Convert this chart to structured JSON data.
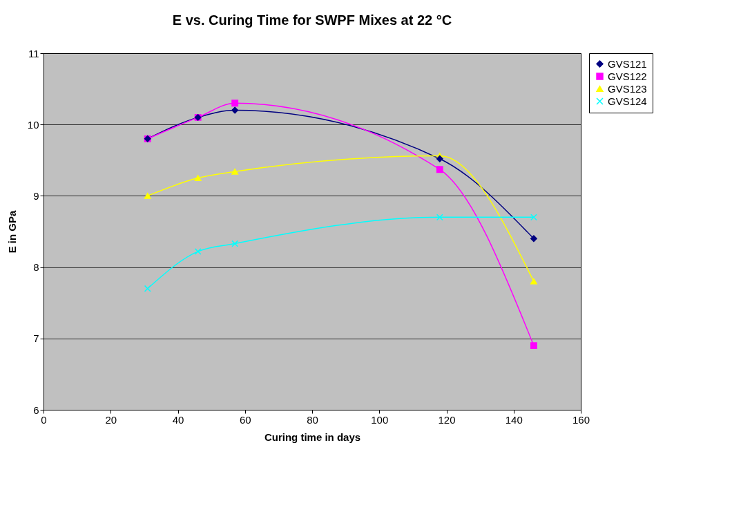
{
  "chart_data": {
    "type": "line",
    "title": "E vs. Curing Time for SWPF Mixes at 22 °C",
    "xlabel": "Curing time in days",
    "ylabel": "E in GPa",
    "x": [
      31,
      46,
      57,
      118,
      146
    ],
    "series": [
      {
        "name": "GVS121",
        "color": "#000080",
        "marker": "diamond",
        "values": [
          9.8,
          10.1,
          10.2,
          9.52,
          8.4
        ]
      },
      {
        "name": "GVS122",
        "color": "#ff00ff",
        "marker": "square",
        "values": [
          9.8,
          10.1,
          10.3,
          9.37,
          6.9
        ]
      },
      {
        "name": "GVS123",
        "color": "#ffff00",
        "marker": "triangle",
        "values": [
          9.0,
          9.25,
          9.34,
          9.56,
          7.8
        ]
      },
      {
        "name": "GVS124",
        "color": "#00ffff",
        "marker": "cross",
        "values": [
          7.7,
          8.22,
          8.33,
          8.7,
          8.7
        ]
      }
    ],
    "xlim": [
      0,
      160
    ],
    "xticks": [
      0,
      20,
      40,
      60,
      80,
      100,
      120,
      140,
      160
    ],
    "ylim": [
      6,
      11
    ],
    "yticks": [
      6,
      7,
      8,
      9,
      10,
      11
    ],
    "grid": "y",
    "legend": "right",
    "line_style": "solid"
  }
}
